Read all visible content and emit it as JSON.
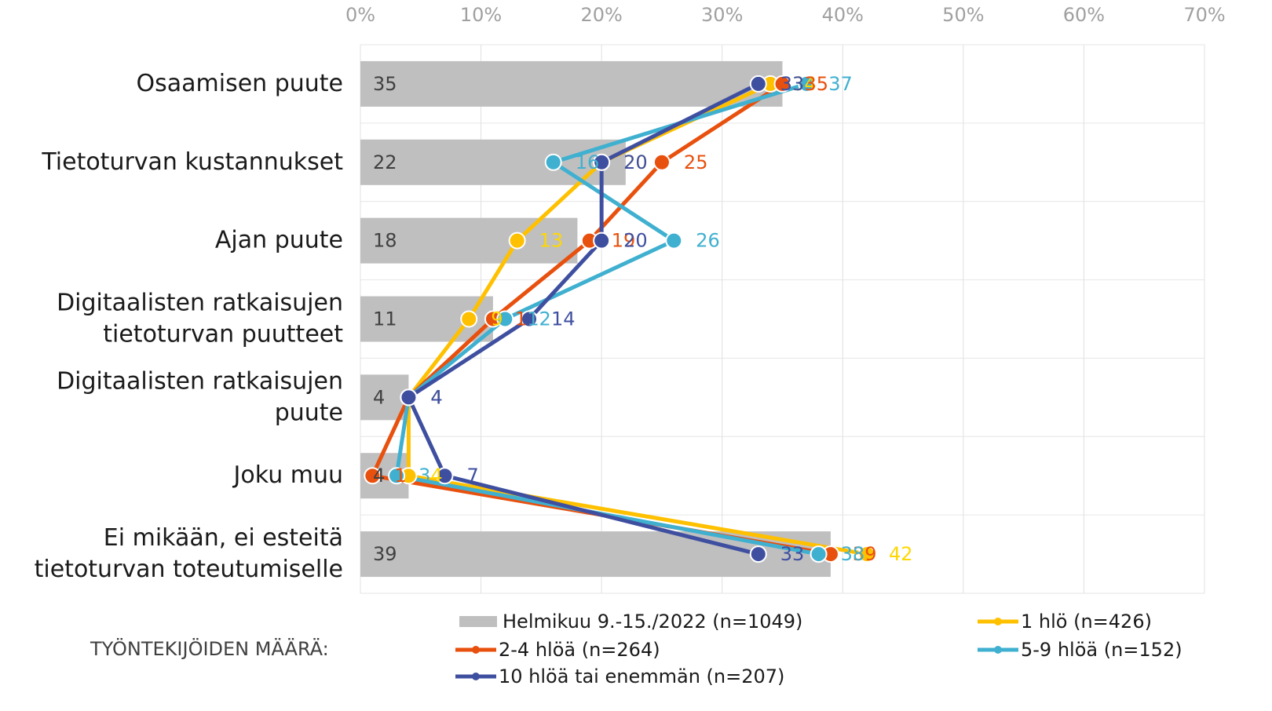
{
  "chart_data": {
    "type": "bar",
    "orientation": "horizontal",
    "categories": [
      "Osaamisen puute",
      "Tietoturvan kustannukset",
      "Ajan puute",
      "Digitaalisten ratkaisujen\ntietoturvan puutteet",
      "Digitaalisten ratkaisujen\npuute",
      "Joku muu",
      "Ei mikään, ei esteitä\ntietoturvan toteutumiselle"
    ],
    "legend_title": "TYÖNTEKIJÖIDEN MÄÄRÄ:",
    "series": [
      {
        "name": "Helmikuu 9.-15./2022 (n=1049)",
        "type": "bar",
        "color": "#bfbfbf",
        "label_color": "#404040",
        "values": [
          35,
          22,
          18,
          11,
          4,
          4,
          39
        ]
      },
      {
        "name": "1 hlö (n=426)",
        "type": "line",
        "color": "#ffc000",
        "label_color": "#ffd700",
        "values": [
          34,
          20,
          13,
          9,
          4,
          4,
          42
        ]
      },
      {
        "name": "2-4 hlöä (n=264)",
        "type": "line",
        "color": "#e8500e",
        "label_color": "#e8500e",
        "values": [
          35,
          25,
          19,
          11,
          4,
          1,
          39
        ]
      },
      {
        "name": "5-9 hlöä (n=152)",
        "type": "line",
        "color": "#40b0d0",
        "label_color": "#40b0d0",
        "values": [
          37,
          16,
          26,
          12,
          4,
          3,
          38
        ]
      },
      {
        "name": "10 hlöä tai enemmän (n=207)",
        "type": "line",
        "color": "#3f4fa0",
        "label_color": "#3f4fa0",
        "values": [
          33,
          20,
          20,
          14,
          4,
          7,
          33
        ]
      }
    ],
    "xlim": [
      0,
      70
    ],
    "xticks": [
      {
        "value": 0,
        "label": "0%"
      },
      {
        "value": 10,
        "label": "10%"
      },
      {
        "value": 20,
        "label": "20%"
      },
      {
        "value": 30,
        "label": "30%"
      },
      {
        "value": 40,
        "label": "40%"
      },
      {
        "value": 50,
        "label": "50%"
      },
      {
        "value": 60,
        "label": "60%"
      },
      {
        "value": 70,
        "label": "70%"
      }
    ],
    "grid": true
  }
}
